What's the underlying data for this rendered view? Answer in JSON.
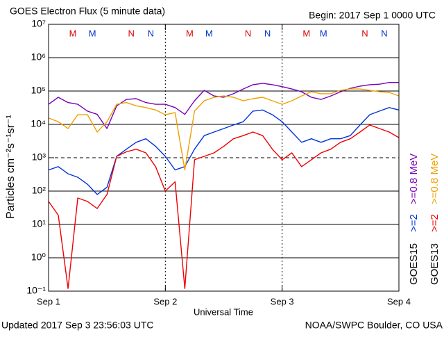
{
  "chart_data": {
    "type": "line",
    "title": "GOES Electron Flux (5 minute data)",
    "subtitle": "Begin: 2017 Sep 1 0000 UTC",
    "x_label": "Universal Time",
    "y_label": "Particles cm⁻²s⁻¹sr⁻¹",
    "footer_left": "Updated 2017 Sep  3 23:56:03 UTC",
    "footer_right": "NOAA/SWPC Boulder, CO USA",
    "log_scale": true,
    "grid": true,
    "threshold": 1000,
    "x": [
      0,
      2,
      4,
      6,
      8,
      10,
      12,
      14,
      16,
      18,
      20,
      22,
      24,
      26,
      28,
      30,
      32,
      34,
      36,
      38,
      40,
      42,
      44,
      46,
      48,
      50,
      52,
      54,
      56,
      58,
      60,
      62,
      64,
      66,
      68,
      70,
      72
    ],
    "xlim": [
      0,
      72
    ],
    "xticks": [
      {
        "value": 0,
        "label": "Sep 1"
      },
      {
        "value": 24,
        "label": "Sep 2"
      },
      {
        "value": 48,
        "label": "Sep 3"
      },
      {
        "value": 72,
        "label": "Sep 4"
      }
    ],
    "ylim": [
      0.1,
      10000000
    ],
    "yticks": [
      {
        "value": 0.1,
        "label": "10⁻¹"
      },
      {
        "value": 1,
        "label": "10⁰"
      },
      {
        "value": 10,
        "label": "10¹"
      },
      {
        "value": 100,
        "label": "10²"
      },
      {
        "value": 1000,
        "label": "10³"
      },
      {
        "value": 10000,
        "label": "10⁴"
      },
      {
        "value": 100000,
        "label": "10⁵"
      },
      {
        "value": 1000000,
        "label": "10⁶"
      },
      {
        "value": 10000000,
        "label": "10⁷"
      }
    ],
    "markers": [
      {
        "text": "M",
        "color": "#dd0000",
        "x": 5
      },
      {
        "text": "M",
        "color": "#0033cc",
        "x": 9
      },
      {
        "text": "N",
        "color": "#dd0000",
        "x": 17
      },
      {
        "text": "N",
        "color": "#0033cc",
        "x": 21
      },
      {
        "text": "M",
        "color": "#dd0000",
        "x": 29
      },
      {
        "text": "M",
        "color": "#0033cc",
        "x": 33
      },
      {
        "text": "N",
        "color": "#dd0000",
        "x": 41
      },
      {
        "text": "N",
        "color": "#0033cc",
        "x": 45
      },
      {
        "text": "M",
        "color": "#dd0000",
        "x": 53
      },
      {
        "text": "M",
        "color": "#0033cc",
        "x": 56.5
      },
      {
        "text": "N",
        "color": "#dd0000",
        "x": 65
      },
      {
        "text": "N",
        "color": "#0033cc",
        "x": 69
      }
    ],
    "series": [
      {
        "group": "GOES15",
        "name": ">=2",
        "color": "#0033dd",
        "values": [
          430,
          540,
          330,
          260,
          160,
          79,
          130,
          1100,
          1800,
          2900,
          3700,
          2200,
          1100,
          430,
          540,
          1800,
          4600,
          5900,
          7500,
          9600,
          12000,
          25000,
          27000,
          19500,
          12000,
          5900,
          2900,
          3700,
          2900,
          3700,
          3700,
          4600,
          9600,
          19500,
          25000,
          32000,
          27000
        ]
      },
      {
        "group": "GOES15",
        "name": ">=0.8 MeV",
        "color": "#7a00b8",
        "values": [
          40000,
          65000,
          45000,
          40000,
          25000,
          20000,
          7500,
          36000,
          56000,
          59000,
          45000,
          40000,
          40000,
          32000,
          20000,
          51000,
          105000,
          71000,
          65000,
          83000,
          115000,
          155000,
          170000,
          155000,
          135000,
          115000,
          95000,
          65000,
          56000,
          71000,
          95000,
          120000,
          140000,
          155000,
          160000,
          180000,
          180000
        ]
      },
      {
        "group": "GOES13",
        "name": ">=2",
        "color": "#ee0000",
        "values": [
          49,
          19,
          0.12,
          62,
          49,
          30,
          79,
          1100,
          1500,
          1800,
          1400,
          540,
          100,
          190,
          0.12,
          870,
          1100,
          1400,
          2200,
          3700,
          4600,
          5900,
          4600,
          1800,
          870,
          1400,
          540,
          870,
          1400,
          1800,
          2900,
          3700,
          5900,
          9600,
          7500,
          5900,
          4000
        ]
      },
      {
        "group": "GOES13",
        "name": ">=0.8 MeV",
        "color": "#f0a000",
        "values": [
          15500,
          12000,
          7500,
          19500,
          19500,
          5900,
          12000,
          40000,
          45000,
          36000,
          32000,
          27000,
          19500,
          22500,
          430,
          25000,
          51000,
          65000,
          71000,
          65000,
          51000,
          59000,
          65000,
          51000,
          40000,
          51000,
          71000,
          95000,
          83000,
          83000,
          105000,
          115000,
          115000,
          105000,
          95000,
          91000,
          71000
        ]
      }
    ]
  }
}
